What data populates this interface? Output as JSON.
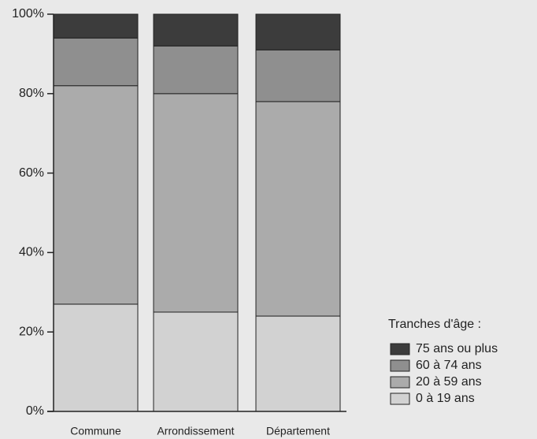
{
  "chart_data": {
    "type": "stacked_bar",
    "categories": [
      "Commune",
      "Arrondissement",
      "Département"
    ],
    "series": [
      {
        "name": "0 à 19 ans",
        "color": "#d2d2d2",
        "values": [
          27,
          25,
          24
        ]
      },
      {
        "name": "20 à 59 ans",
        "color": "#ababab",
        "values": [
          55,
          55,
          54
        ]
      },
      {
        "name": "60 à 74 ans",
        "color": "#8f8f8f",
        "values": [
          12,
          12,
          13
        ]
      },
      {
        "name": "75 ans ou plus",
        "color": "#3c3c3c",
        "values": [
          6,
          8,
          9
        ]
      }
    ],
    "legend_title": "Tranches d'âge :",
    "ylim": [
      0,
      100
    ],
    "yticks": [
      {
        "value": 0,
        "label": "0%"
      },
      {
        "value": 20,
        "label": "20%"
      },
      {
        "value": 40,
        "label": "40%"
      },
      {
        "value": 60,
        "label": "60%"
      },
      {
        "value": 80,
        "label": "80%"
      },
      {
        "value": 100,
        "label": "100%"
      }
    ]
  }
}
